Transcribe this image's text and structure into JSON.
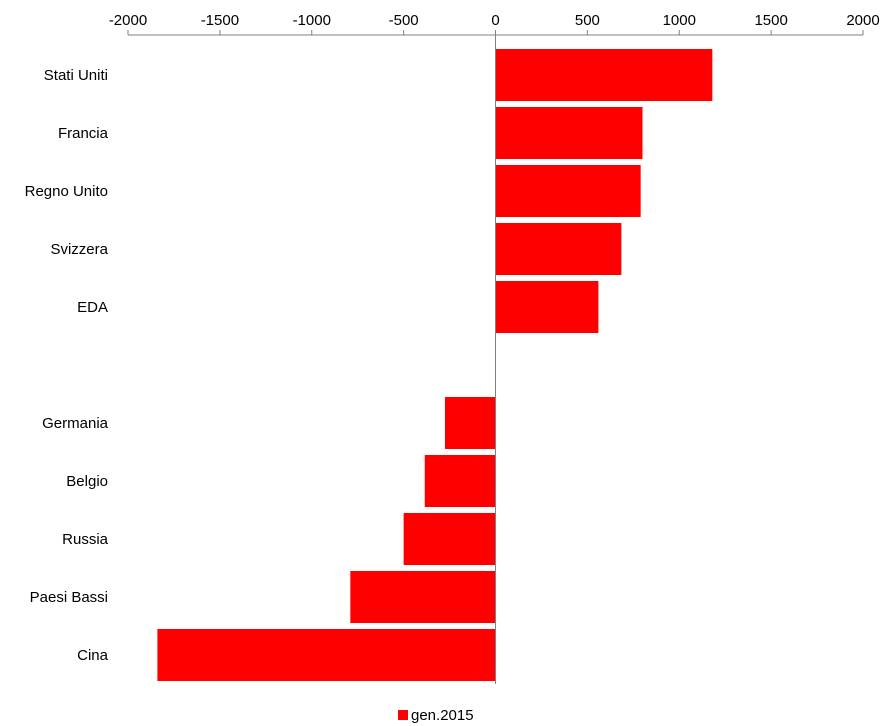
{
  "chart_data": {
    "type": "bar",
    "orientation": "horizontal",
    "categories": [
      "Stati Uniti",
      "Francia",
      "Regno Unito",
      "Svizzera",
      "EDA",
      "",
      "Germania",
      "Belgio",
      "Russia",
      "Paesi Bassi",
      "Cina"
    ],
    "series": [
      {
        "name": "gen.2015",
        "color": "#ff0000",
        "values": [
          1180,
          800,
          790,
          685,
          560,
          null,
          -275,
          -385,
          -500,
          -790,
          -1840
        ]
      }
    ],
    "xlim": [
      -2000,
      2000
    ],
    "xticks": [
      -2000,
      -1500,
      -1000,
      -500,
      0,
      500,
      1000,
      1500,
      2000
    ],
    "xtick_labels": [
      "-2000",
      "-1500",
      "-1000",
      "-500",
      "0",
      "500",
      "1000",
      "1500",
      "2000"
    ],
    "x_axis_position": "top",
    "grid": false,
    "legend_position": "bottom-center",
    "title": "",
    "xlabel": "",
    "ylabel": ""
  }
}
